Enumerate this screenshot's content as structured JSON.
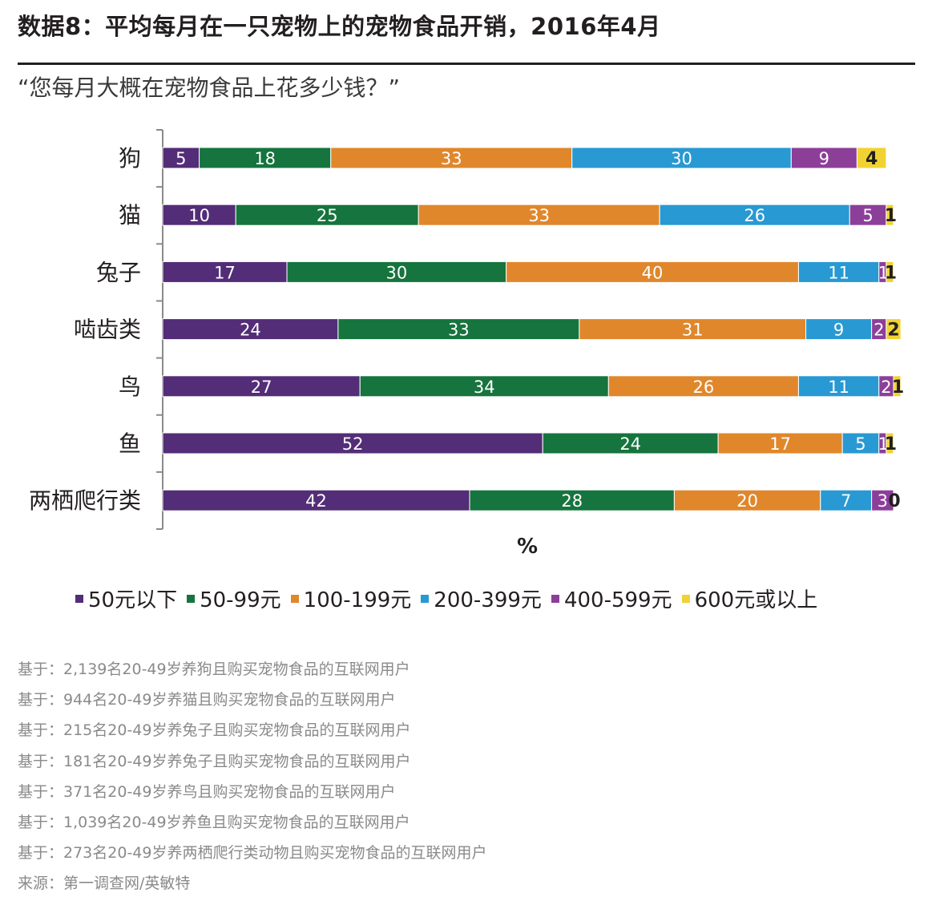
{
  "title": "数据8：平均每月在一只宠物上的宠物食品开销，2016年4月",
  "subtitle": "“您每月大概在宠物食品上花多少钱？”",
  "chart_data": {
    "type": "bar",
    "orientation": "horizontal",
    "stacked": true,
    "categories": [
      "狗",
      "猫",
      "兔子",
      "啮齿类",
      "鸟",
      "鱼",
      "两栖爬行类"
    ],
    "series": [
      {
        "name": "50元以下",
        "color": "#532d77",
        "values": [
          5,
          10,
          17,
          24,
          27,
          52,
          42
        ]
      },
      {
        "name": "50-99元",
        "color": "#16743e",
        "values": [
          18,
          25,
          30,
          33,
          34,
          24,
          28
        ]
      },
      {
        "name": "100-199元",
        "color": "#e0872c",
        "values": [
          33,
          33,
          40,
          31,
          26,
          17,
          20
        ]
      },
      {
        "name": "200-399元",
        "color": "#2899d2",
        "values": [
          30,
          26,
          11,
          9,
          11,
          5,
          7
        ]
      },
      {
        "name": "400-599元",
        "color": "#8c3f99",
        "values": [
          9,
          5,
          1,
          2,
          2,
          1,
          3
        ]
      },
      {
        "name": "600元或以上",
        "color": "#f0d332",
        "values": [
          4,
          1,
          1,
          2,
          1,
          1,
          0
        ]
      }
    ],
    "xlabel": "%",
    "ylabel": "",
    "xlim": [
      0,
      100
    ]
  },
  "notes": [
    "基于：2,139名20-49岁养狗且购买宠物食品的互联网用户",
    "基于：944名20-49岁养猫且购买宠物食品的互联网用户",
    "基于：215名20-49岁养兔子且购买宠物食品的互联网用户",
    "基于：181名20-49岁养兔子且购买宠物食品的互联网用户",
    "基于：371名20-49岁养鸟且购买宠物食品的互联网用户",
    "基于：1,039名20-49岁养鱼且购买宠物食品的互联网用户",
    "基于：273名20-49岁养两栖爬行类动物且购买宠物食品的互联网用户",
    "来源：第一调查网/英敏特"
  ]
}
